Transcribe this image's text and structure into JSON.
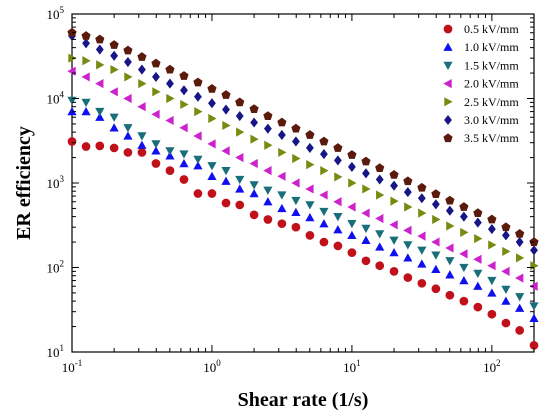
{
  "chart_data": {
    "type": "scatter",
    "title": "",
    "xlabel": "Shear rate (1/s)",
    "ylabel": "ER efficiency",
    "x_scale": "log",
    "y_scale": "log",
    "xlim": [
      0.1,
      200
    ],
    "ylim": [
      10,
      100000
    ],
    "x_ticks": [
      {
        "base": "10",
        "exp": "-1",
        "value": 0.1
      },
      {
        "base": "10",
        "exp": "0",
        "value": 1
      },
      {
        "base": "10",
        "exp": "1",
        "value": 10
      },
      {
        "base": "10",
        "exp": "2",
        "value": 100
      }
    ],
    "y_ticks": [
      {
        "base": "10",
        "exp": "1",
        "value": 10
      },
      {
        "base": "10",
        "exp": "2",
        "value": 100
      },
      {
        "base": "10",
        "exp": "3",
        "value": 1000
      },
      {
        "base": "10",
        "exp": "4",
        "value": 10000
      },
      {
        "base": "10",
        "exp": "5",
        "value": 100000
      }
    ],
    "grid": false,
    "legend_position": "top-right",
    "x": [
      0.1,
      0.126,
      0.158,
      0.2,
      0.251,
      0.316,
      0.398,
      0.501,
      0.631,
      0.794,
      1.0,
      1.26,
      1.58,
      2.0,
      2.51,
      3.16,
      3.98,
      5.01,
      6.31,
      7.94,
      10.0,
      12.6,
      15.8,
      20.0,
      25.1,
      31.6,
      39.8,
      50.1,
      63.1,
      79.4,
      100,
      126,
      158,
      200
    ],
    "series": [
      {
        "name": "0.5 kV/mm",
        "marker": "circle",
        "color": "#c0101a",
        "values": [
          3100,
          2700,
          2750,
          2600,
          2300,
          2300,
          1700,
          1400,
          1100,
          750,
          750,
          580,
          550,
          420,
          370,
          330,
          300,
          240,
          200,
          180,
          150,
          120,
          105,
          90,
          76,
          65,
          56,
          47,
          40,
          34,
          28,
          22,
          18,
          12
        ]
      },
      {
        "name": "1.0 kV/mm",
        "marker": "triangle-up",
        "color": "#1010ee",
        "values": [
          7000,
          7000,
          6000,
          4500,
          3600,
          2800,
          2400,
          2100,
          1700,
          1600,
          1200,
          1050,
          850,
          750,
          600,
          500,
          450,
          390,
          330,
          280,
          240,
          210,
          175,
          150,
          130,
          110,
          95,
          82,
          70,
          60,
          50,
          40,
          33,
          25
        ]
      },
      {
        "name": "1.5 kV/mm",
        "marker": "triangle-down",
        "color": "#1a6e7a",
        "values": [
          9500,
          9000,
          7000,
          6000,
          4500,
          3600,
          2900,
          2400,
          2200,
          1900,
          1600,
          1400,
          1100,
          950,
          820,
          720,
          620,
          550,
          460,
          400,
          330,
          290,
          250,
          210,
          185,
          160,
          140,
          120,
          100,
          85,
          70,
          55,
          45,
          35
        ]
      },
      {
        "name": "2.0 kV/mm",
        "marker": "triangle-left",
        "color": "#cc22cc",
        "values": [
          21000,
          18000,
          15000,
          12000,
          10000,
          8000,
          6500,
          5500,
          4500,
          3600,
          2900,
          2400,
          2000,
          1700,
          1400,
          1200,
          1000,
          850,
          720,
          600,
          520,
          440,
          380,
          320,
          275,
          235,
          200,
          170,
          145,
          125,
          105,
          90,
          75,
          60
        ]
      },
      {
        "name": "2.5 kV/mm",
        "marker": "triangle-right",
        "color": "#7a8a10",
        "values": [
          30000,
          28000,
          25000,
          22000,
          18000,
          15000,
          12000,
          10000,
          8500,
          7000,
          5800,
          4800,
          4000,
          3300,
          2800,
          2300,
          1950,
          1650,
          1400,
          1180,
          1000,
          850,
          720,
          610,
          520,
          440,
          370,
          310,
          260,
          220,
          185,
          155,
          130,
          105
        ]
      },
      {
        "name": "3.0 kV/mm",
        "marker": "diamond",
        "color": "#161686",
        "values": [
          55000,
          45000,
          38000,
          32000,
          27000,
          22000,
          18000,
          15000,
          12500,
          10500,
          8800,
          7400,
          6200,
          5200,
          4400,
          3700,
          3100,
          2600,
          2200,
          1850,
          1550,
          1300,
          1100,
          930,
          780,
          660,
          560,
          470,
          400,
          340,
          285,
          240,
          200,
          160
        ]
      },
      {
        "name": "3.5 kV/mm",
        "marker": "pentagon",
        "color": "#5a1a0c",
        "values": [
          60000,
          55000,
          50000,
          43000,
          37000,
          31000,
          26000,
          22000,
          18500,
          15500,
          13000,
          11000,
          9000,
          7500,
          6200,
          5200,
          4400,
          3700,
          3100,
          2600,
          2150,
          1800,
          1500,
          1250,
          1050,
          880,
          740,
          620,
          520,
          440,
          370,
          300,
          250,
          200
        ]
      }
    ]
  }
}
